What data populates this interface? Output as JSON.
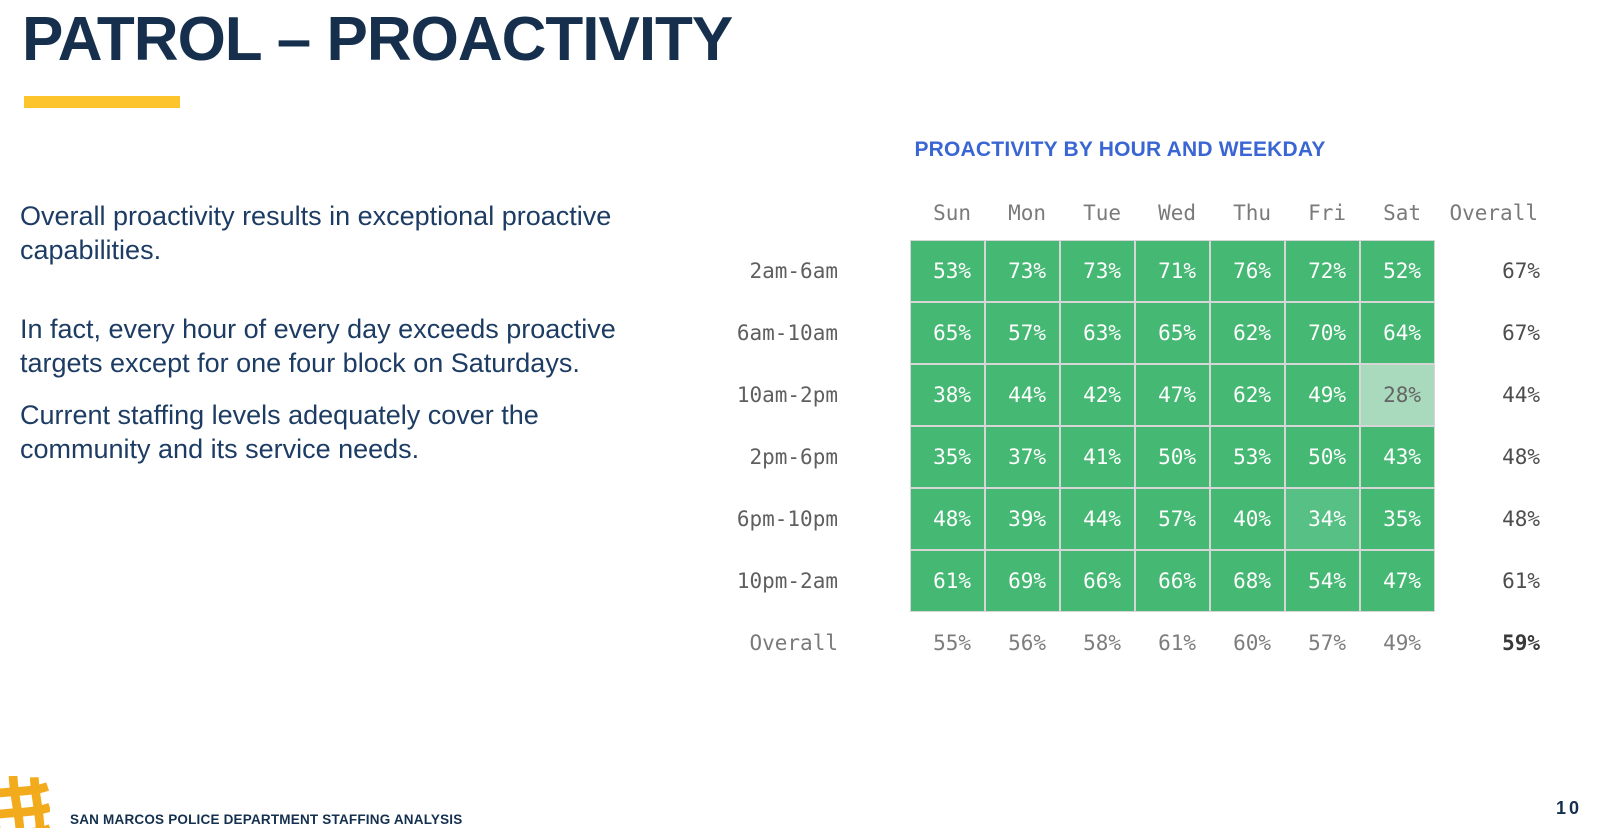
{
  "header": {
    "title": "PATROL – PROACTIVITY"
  },
  "accent": {
    "bar_color": "#fdc42c"
  },
  "body": {
    "paragraphs": [
      "Overall proactivity results in exceptional proactive capabilities.",
      "In fact, every hour of every day exceeds proactive targets except for one four block on Saturdays.",
      "Current staffing levels adequately cover the community and its service needs."
    ]
  },
  "chart_data": {
    "type": "heatmap",
    "title": "PROACTIVITY BY HOUR AND WEEKDAY",
    "title_color": "#3a66d4",
    "columns": [
      "Sun",
      "Mon",
      "Tue",
      "Wed",
      "Thu",
      "Fri",
      "Sat"
    ],
    "rows": [
      "2am-6am",
      "6am-10am",
      "10am-2pm",
      "2pm-6pm",
      "6pm-10pm",
      "10pm-2am"
    ],
    "values": [
      [
        53,
        73,
        73,
        71,
        76,
        72,
        52
      ],
      [
        65,
        57,
        63,
        65,
        62,
        70,
        64
      ],
      [
        38,
        44,
        42,
        47,
        62,
        49,
        28
      ],
      [
        35,
        37,
        41,
        50,
        53,
        50,
        43
      ],
      [
        48,
        39,
        44,
        57,
        40,
        34,
        35
      ],
      [
        61,
        69,
        66,
        66,
        68,
        54,
        47
      ]
    ],
    "unit": "%",
    "overall_label": "Overall",
    "row_overall": [
      67,
      67,
      44,
      48,
      48,
      61
    ],
    "col_overall": [
      55,
      56,
      58,
      61,
      60,
      57,
      49
    ],
    "grand_overall": 59,
    "colors": {
      "cell_bg": "#45b873",
      "cell_text": "#ffffff",
      "low_bg": "#aadabd",
      "low_text": "#646464",
      "mid_bg": "#57c084"
    },
    "special_cells": [
      {
        "row": 2,
        "col": 6,
        "variant": "low"
      },
      {
        "row": 4,
        "col": 5,
        "variant": "mid"
      }
    ]
  },
  "footer": {
    "org_text": "SAN MARCOS POLICE DEPARTMENT STAFFING ANALYSIS",
    "page_number": "10",
    "logo_color": "#f3ab1e"
  }
}
